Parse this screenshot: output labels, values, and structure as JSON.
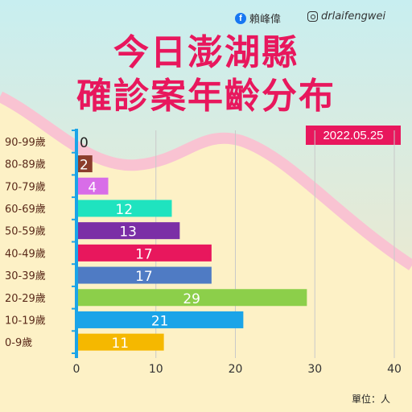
{
  "header": {
    "facebook_name": "賴峰偉",
    "instagram_handle": "drlaifengwei",
    "title_line1": "今日澎湖縣",
    "title_line2": "確診案年齡分布",
    "date": "2022.05.25",
    "unit": "單位：人"
  },
  "colors": {
    "title": "#e8175d",
    "badge": "#e8175d",
    "wave": "#f9c7d5",
    "background_top": "#cdeff0",
    "background_bottom": "#fdf0c4"
  },
  "chart_data": {
    "type": "bar",
    "orientation": "horizontal",
    "categories": [
      "90-99歲",
      "80-89歲",
      "70-79歲",
      "60-69歲",
      "50-59歲",
      "40-49歲",
      "30-39歲",
      "20-29歲",
      "10-19歲",
      "0-9歲"
    ],
    "values": [
      0,
      2,
      4,
      12,
      13,
      17,
      17,
      29,
      21,
      11
    ],
    "bar_colors": [
      "#e8dcb8",
      "#8b3d2c",
      "#d86de8",
      "#1fe3bf",
      "#7b2fa6",
      "#e8175d",
      "#4f7bc4",
      "#8ccf4a",
      "#1aa4e8",
      "#f5b800"
    ],
    "x_ticks": [
      0,
      10,
      20,
      30,
      40
    ],
    "xlim": [
      0,
      40
    ],
    "grid": true
  }
}
